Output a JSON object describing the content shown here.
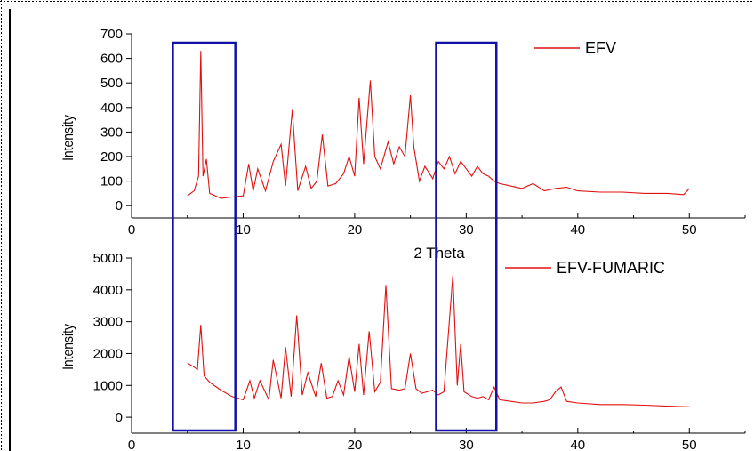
{
  "chart_data": [
    {
      "type": "line",
      "xlim": [
        0,
        55
      ],
      "ylim": [
        -50,
        700
      ],
      "xticks": [
        0,
        10,
        20,
        30,
        40,
        50
      ],
      "yticks": [
        0,
        100,
        200,
        300,
        400,
        500,
        600,
        700
      ],
      "xlabel": "2 Theta",
      "ylabel": "Intensity",
      "legend_position": "top-right",
      "series": [
        {
          "name": "EFV",
          "color": "#e01010",
          "x": [
            5.0,
            5.6,
            6.0,
            6.2,
            6.4,
            6.7,
            7.0,
            8.0,
            9.0,
            10.0,
            10.5,
            10.9,
            11.3,
            12.0,
            12.7,
            13.4,
            13.8,
            14.4,
            14.9,
            15.6,
            16.1,
            16.6,
            17.1,
            17.6,
            18.3,
            19.0,
            19.5,
            20.0,
            20.4,
            20.8,
            21.4,
            21.8,
            22.3,
            23.0,
            23.5,
            24.0,
            24.5,
            25.0,
            25.3,
            25.8,
            26.3,
            27.0,
            27.5,
            28.0,
            28.5,
            29.0,
            29.5,
            30.0,
            30.5,
            31.0,
            31.5,
            32.0,
            32.5,
            33.0,
            34.0,
            35.0,
            36.0,
            37.0,
            38.0,
            39.0,
            40.0,
            42.0,
            44.0,
            46.0,
            48.0,
            49.5,
            50.0
          ],
          "y": [
            40,
            60,
            120,
            630,
            120,
            190,
            50,
            30,
            35,
            40,
            170,
            60,
            150,
            60,
            180,
            250,
            80,
            390,
            60,
            160,
            70,
            100,
            290,
            80,
            90,
            130,
            200,
            120,
            440,
            170,
            510,
            200,
            150,
            260,
            170,
            240,
            200,
            450,
            240,
            100,
            160,
            110,
            180,
            150,
            200,
            130,
            180,
            150,
            120,
            160,
            130,
            120,
            100,
            90,
            80,
            70,
            90,
            60,
            70,
            75,
            60,
            55,
            55,
            50,
            50,
            45,
            70
          ]
        }
      ]
    },
    {
      "type": "line",
      "xlim": [
        0,
        55
      ],
      "ylim": [
        -500,
        5000
      ],
      "xticks": [
        0,
        10,
        20,
        30,
        40,
        50
      ],
      "yticks": [
        0,
        1000,
        2000,
        3000,
        4000,
        5000
      ],
      "xlabel": "",
      "ylabel": "Intensity",
      "legend_position": "top-right",
      "series": [
        {
          "name": "EFV-FUMARIC",
          "color": "#e01010",
          "x": [
            5.0,
            5.5,
            5.9,
            6.2,
            6.5,
            7.0,
            8.0,
            9.0,
            10.0,
            10.6,
            11.0,
            11.5,
            12.3,
            12.7,
            13.4,
            13.8,
            14.3,
            14.8,
            15.3,
            15.8,
            16.5,
            17.0,
            17.5,
            18.0,
            18.5,
            19.0,
            19.5,
            20.0,
            20.4,
            20.8,
            21.3,
            21.8,
            22.3,
            22.8,
            23.3,
            24.0,
            24.5,
            25.0,
            25.5,
            26.0,
            27.0,
            27.5,
            28.0,
            28.8,
            29.2,
            29.5,
            29.8,
            30.5,
            31.0,
            31.5,
            32.0,
            32.5,
            33.0,
            34.0,
            35.0,
            36.0,
            37.0,
            37.5,
            38.0,
            38.5,
            39.0,
            40.0,
            42.0,
            44.0,
            46.0,
            48.0,
            50.0
          ],
          "y": [
            1700,
            1600,
            1500,
            2900,
            1300,
            1100,
            850,
            650,
            550,
            1150,
            600,
            1150,
            550,
            1800,
            600,
            2200,
            650,
            3200,
            700,
            1400,
            650,
            1700,
            600,
            650,
            1150,
            700,
            1900,
            800,
            2300,
            700,
            2700,
            800,
            1100,
            4150,
            900,
            850,
            900,
            2000,
            900,
            750,
            850,
            700,
            800,
            4450,
            1000,
            2300,
            800,
            650,
            600,
            650,
            550,
            950,
            550,
            500,
            450,
            450,
            500,
            550,
            800,
            950,
            500,
            450,
            400,
            400,
            380,
            350,
            330
          ]
        }
      ]
    }
  ],
  "highlight_regions": [
    {
      "x_from": 3.7,
      "x_to": 9.3,
      "color": "#1111aa"
    },
    {
      "x_from": 27.3,
      "x_to": 32.7,
      "color": "#1111aa"
    }
  ]
}
